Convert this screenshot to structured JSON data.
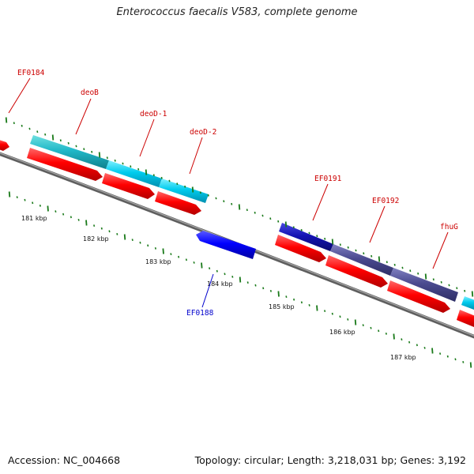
{
  "map": {
    "title": "Enterococcus faecalis V583, complete genome",
    "accession": "Accession: NC_004668",
    "topology": "Topology: circular; Length: 3,218,031 bp; Genes: 3,192"
  },
  "colors": {
    "forward_cds": "#ff0000",
    "reverse_cds": "#0000ff",
    "cog_cyan": "#00ccee",
    "cog_slate": "#4b4b90",
    "backbone": "#808080",
    "ticks": "#1a7a1a",
    "forward_label": "#cc0000",
    "reverse_label": "#0000cc"
  },
  "genes": [
    {
      "name": "EF0184",
      "strand": "+"
    },
    {
      "name": "deoB",
      "strand": "+"
    },
    {
      "name": "deoD-1",
      "strand": "+"
    },
    {
      "name": "deoD-2",
      "strand": "+"
    },
    {
      "name": "EF0188",
      "strand": "-"
    },
    {
      "name": "EF0191",
      "strand": "+"
    },
    {
      "name": "EF0192",
      "strand": "+"
    },
    {
      "name": "fhuG",
      "strand": "+"
    }
  ],
  "scale": {
    "labels": [
      "181 kbp",
      "182 kbp",
      "183 kbp",
      "184 kbp",
      "185 kbp",
      "186 kbp",
      "187 kbp"
    ]
  }
}
